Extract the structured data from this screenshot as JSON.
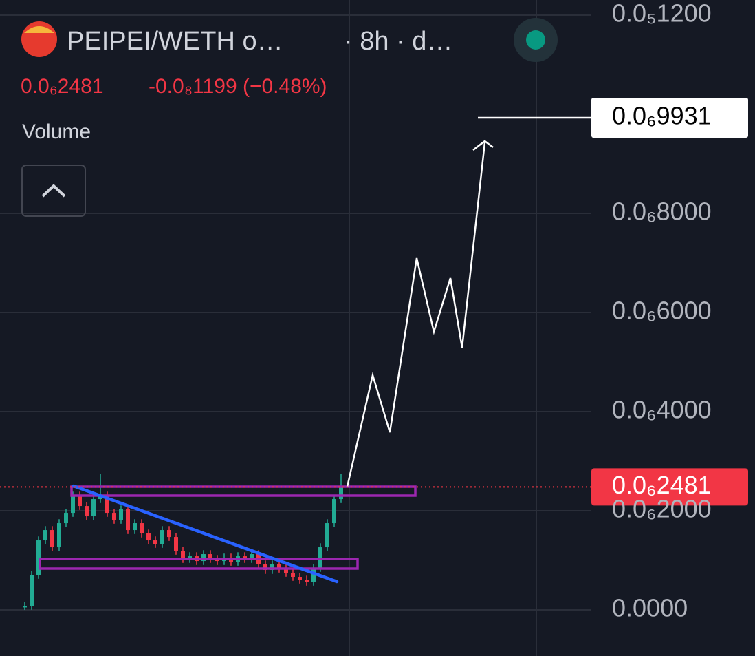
{
  "chart_data": {
    "type": "candlestick",
    "pair": "PEIPEI/WETH o…",
    "interval": "· 8h · d…",
    "last_price": "0.0₆2481",
    "change": "-0.0₈1199 (−0.48%)",
    "indicator": "Volume",
    "up_color": "#22ab94",
    "down_color": "#f23645",
    "ylim": [
      -9.3e-08,
      1.2306e-06
    ],
    "yticks": [
      {
        "value": 0,
        "label": "0.0000"
      },
      {
        "value": 2e-07,
        "label": "0.0₆2000"
      },
      {
        "value": 4e-07,
        "label": "0.0₆4000"
      },
      {
        "value": 6e-07,
        "label": "0.0₆6000"
      },
      {
        "value": 8e-07,
        "label": "0.0₆8000"
      },
      {
        "value": 1.2e-06,
        "label": "0.0₅1200"
      }
    ],
    "grid": true,
    "current_price": {
      "value": 2.481e-07,
      "label": "0.0₆2481"
    },
    "target_price": {
      "value": 9.931e-07,
      "label": "0.0₆9931"
    },
    "open": [
      5e-09,
      8.3e-09,
      7.08e-08,
      1.403e-07,
      1.611e-07,
      1.264e-07,
      1.75e-07,
      1.958e-07,
      2.306e-07,
      2.097e-07,
      1.889e-07,
      2.236e-07,
      2.306e-07,
      1.958e-07,
      1.819e-07,
      2.028e-07,
      1.611e-07,
      1.75e-07,
      1.542e-07,
      1.403e-07,
      1.333e-07,
      1.611e-07,
      1.472e-07,
      1.194e-07,
      1.028e-07,
      1.083e-07,
      9.86e-08,
      1.125e-07,
      1.028e-07,
      9.86e-08,
      1.056e-07,
      9.72e-08,
      1.083e-07,
      1.028e-07,
      1.125e-07,
      9.17e-08,
      8.06e-08,
      9.17e-08,
      8.33e-08,
      7.5e-08,
      6.67e-08,
      6.11e-08,
      5.69e-08,
      8.47e-08,
      1.264e-07,
      1.75e-07,
      2.236e-07
    ],
    "high": [
      1.63e-08,
      7.88e-08,
      1.483e-07,
      1.691e-07,
      1.691e-07,
      1.83e-07,
      2.038e-07,
      2.386e-07,
      2.386e-07,
      2.177e-07,
      2.316e-07,
      2.75e-07,
      2.386e-07,
      2.038e-07,
      2.108e-07,
      2.108e-07,
      1.83e-07,
      1.83e-07,
      1.622e-07,
      1.483e-07,
      1.691e-07,
      1.691e-07,
      1.552e-07,
      1.274e-07,
      1.163e-07,
      1.163e-07,
      1.205e-07,
      1.205e-07,
      1.108e-07,
      1.136e-07,
      1.136e-07,
      1.163e-07,
      1.163e-07,
      1.205e-07,
      1.205e-07,
      9.97e-08,
      9.97e-08,
      9.97e-08,
      9.13e-08,
      8.3e-08,
      7.47e-08,
      6.91e-08,
      9.27e-08,
      1.344e-07,
      1.83e-07,
      2.316e-07,
      2.75e-07
    ],
    "low": [
      0,
      3e-10,
      6.28e-08,
      1.323e-07,
      1.184e-07,
      1.184e-07,
      1.67e-07,
      1.878e-07,
      2.017e-07,
      1.809e-07,
      1.809e-07,
      2.156e-07,
      1.878e-07,
      1.739e-07,
      1.739e-07,
      1.531e-07,
      1.531e-07,
      1.462e-07,
      1.323e-07,
      1.253e-07,
      1.253e-07,
      1.392e-07,
      1.114e-07,
      9.48e-08,
      9.48e-08,
      9.06e-08,
      9.06e-08,
      9.48e-08,
      9.06e-08,
      9.06e-08,
      8.92e-08,
      8.92e-08,
      9.48e-08,
      9.48e-08,
      8.37e-08,
      7.26e-08,
      7.26e-08,
      7.53e-08,
      6.7e-08,
      5.87e-08,
      5.31e-08,
      4.89e-08,
      4.89e-08,
      7.67e-08,
      1.184e-07,
      1.67e-07,
      2.156e-07
    ],
    "close": [
      8.3e-09,
      7.08e-08,
      1.403e-07,
      1.611e-07,
      1.264e-07,
      1.75e-07,
      1.958e-07,
      2.306e-07,
      2.097e-07,
      1.889e-07,
      2.236e-07,
      2.306e-07,
      1.958e-07,
      1.819e-07,
      2.028e-07,
      1.611e-07,
      1.75e-07,
      1.542e-07,
      1.403e-07,
      1.333e-07,
      1.611e-07,
      1.472e-07,
      1.194e-07,
      1.028e-07,
      1.083e-07,
      9.86e-08,
      1.125e-07,
      1.028e-07,
      9.86e-08,
      1.056e-07,
      9.72e-08,
      1.083e-07,
      1.028e-07,
      1.125e-07,
      9.17e-08,
      8.06e-08,
      9.17e-08,
      8.33e-08,
      7.5e-08,
      6.67e-08,
      6.11e-08,
      5.69e-08,
      8.47e-08,
      1.264e-07,
      1.75e-07,
      2.236e-07,
      2.481e-07
    ]
  }
}
